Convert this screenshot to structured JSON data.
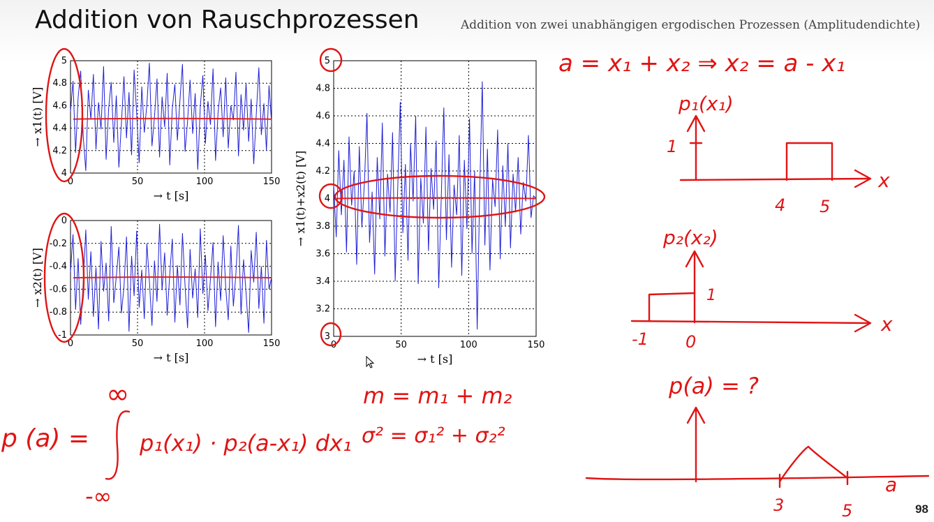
{
  "slide": {
    "title": "Addition von Rauschprozessen",
    "subtitle": "Addition von zwei unabhängigen ergodischen Prozessen (Amplitudendichte)",
    "page_number": "98"
  },
  "chart_data": [
    {
      "type": "line",
      "ylabel": "→ x1(t) [V]",
      "xlabel": "→ t [s]",
      "xlim": [
        0,
        150
      ],
      "ylim": [
        4,
        5
      ],
      "xticks": [
        "0",
        "50",
        "100",
        "150"
      ],
      "yticks": [
        "4",
        "4.2",
        "4.4",
        "4.6",
        "4.8",
        "5"
      ],
      "grid": true,
      "series": [
        {
          "values": [
            4.55,
            4.82,
            4.18,
            4.67,
            4.91,
            4.33,
            4.02,
            4.74,
            4.48,
            4.88,
            4.21,
            4.63,
            4.39,
            4.95,
            4.12,
            4.58,
            4.81,
            4.27,
            4.69,
            4.05,
            4.44,
            4.86,
            4.31,
            4.72,
            4.16,
            4.92,
            4.53,
            4.09,
            4.77,
            4.36,
            4.61,
            4.98,
            4.24,
            4.5,
            4.84,
            4.14,
            4.68,
            4.41,
            4.89,
            4.07,
            4.57,
            4.79,
            4.29,
            4.65,
            4.97,
            4.19,
            4.46,
            4.83,
            4.35,
            4.71,
            4.03,
            4.59,
            4.87,
            4.26,
            4.64,
            4.43,
            4.93,
            4.11,
            4.54,
            4.76,
            4.32,
            4.85,
            4.22,
            4.6,
            4.47,
            4.9,
            4.15,
            4.7,
            4.38,
            4.8,
            4.28,
            4.66,
            4.08,
            4.52,
            4.94,
            4.34,
            4.62,
            4.2,
            4.78,
            4.45
          ]
        }
      ]
    },
    {
      "type": "line",
      "ylabel": "→ x2(t) [V]",
      "xlabel": "→ t [s]",
      "xlim": [
        0,
        150
      ],
      "ylim": [
        -1,
        0
      ],
      "xticks": [
        "0",
        "50",
        "100",
        "150"
      ],
      "yticks": [
        "-1",
        "-0.8",
        "-0.6",
        "-0.4",
        "-0.2",
        "0"
      ],
      "grid": true,
      "series": [
        {
          "values": [
            -0.45,
            -0.12,
            -0.78,
            -0.33,
            -0.91,
            -0.55,
            -0.08,
            -0.69,
            -0.27,
            -0.84,
            -0.41,
            -0.95,
            -0.18,
            -0.62,
            -0.37,
            -0.88,
            -0.05,
            -0.72,
            -0.49,
            -0.23,
            -0.81,
            -0.58,
            -0.14,
            -0.97,
            -0.31,
            -0.66,
            -0.09,
            -0.76,
            -0.43,
            -0.86,
            -0.2,
            -0.53,
            -0.92,
            -0.35,
            -0.71,
            -0.03,
            -0.61,
            -0.28,
            -0.83,
            -0.47,
            -0.16,
            -0.89,
            -0.39,
            -0.74,
            -0.11,
            -0.57,
            -0.94,
            -0.25,
            -0.68,
            -0.42,
            -0.85,
            -0.07,
            -0.64,
            -0.3,
            -0.79,
            -0.51,
            -0.19,
            -0.93,
            -0.36,
            -0.7,
            -0.13,
            -0.59,
            -0.87,
            -0.22,
            -0.75,
            -0.46,
            -0.04,
            -0.82,
            -0.34,
            -0.63,
            -0.98,
            -0.26,
            -0.54,
            -0.1,
            -0.77,
            -0.4,
            -0.9,
            -0.17,
            -0.6,
            -0.5
          ]
        }
      ]
    },
    {
      "type": "line",
      "ylabel": "→ x1(t)+x2(t) [V]",
      "xlabel": "→ t [s]",
      "xlim": [
        0,
        150
      ],
      "ylim": [
        3,
        5
      ],
      "xticks": [
        "0",
        "50",
        "100",
        "150"
      ],
      "yticks": [
        "3",
        "3.2",
        "3.4",
        "3.6",
        "3.8",
        "4",
        "4.2",
        "4.4",
        "4.6",
        "4.8",
        "5"
      ],
      "grid": true,
      "series": [
        {
          "values": [
            4.1,
            3.72,
            4.35,
            3.88,
            4.28,
            3.61,
            4.45,
            3.95,
            4.2,
            3.52,
            4.38,
            3.79,
            4.12,
            4.62,
            3.68,
            4.05,
            3.45,
            4.3,
            3.85,
            4.55,
            3.58,
            4.18,
            3.9,
            4.48,
            3.4,
            4.08,
            4.7,
            3.75,
            4.25,
            3.55,
            4.4,
            3.98,
            4.6,
            3.38,
            4.15,
            3.82,
            4.52,
            3.62,
            4.22,
            3.92,
            4.42,
            3.35,
            4.02,
            4.66,
            3.7,
            4.32,
            3.5,
            4.1,
            3.88,
            4.46,
            3.44,
            4.28,
            3.78,
            4.58,
            3.6,
            4.2,
            3.05,
            4.05,
            4.85,
            3.66,
            4.36,
            3.48,
            4.14,
            3.94,
            4.5,
            3.56,
            4.24,
            3.8,
            4.4,
            3.64,
            4.18,
            3.9,
            4.3,
            3.74,
            4.12,
            3.98,
            4.46,
            3.86,
            4.02,
            4.0
          ]
        }
      ]
    }
  ],
  "annotations": {
    "eq_top": "a = x₁ + x₂   ⇒ x₂ = a - x₁",
    "p1_label": "p₁(x₁)",
    "p1_one": "1",
    "p1_x": "x",
    "p1_tick4": "4",
    "p1_tick5": "5",
    "p2_label": "p₂(x₂)",
    "p2_one": "1",
    "p2_x": "x",
    "p2_tickm1": "-1",
    "p2_tick0": "0",
    "pa_label": "p(a) = ?",
    "pa_tick3": "3",
    "pa_tick5": "5",
    "pa_x": "a",
    "mean_eq": "m = m₁ + m₂",
    "var_eq": "σ² = σ₁² + σ₂²",
    "integral_lhs": "p (a) =",
    "integral_body": "p₁(x₁) · p₂(a-x₁) dx₁",
    "integral_upper": "∞",
    "integral_lower": "-∞"
  }
}
